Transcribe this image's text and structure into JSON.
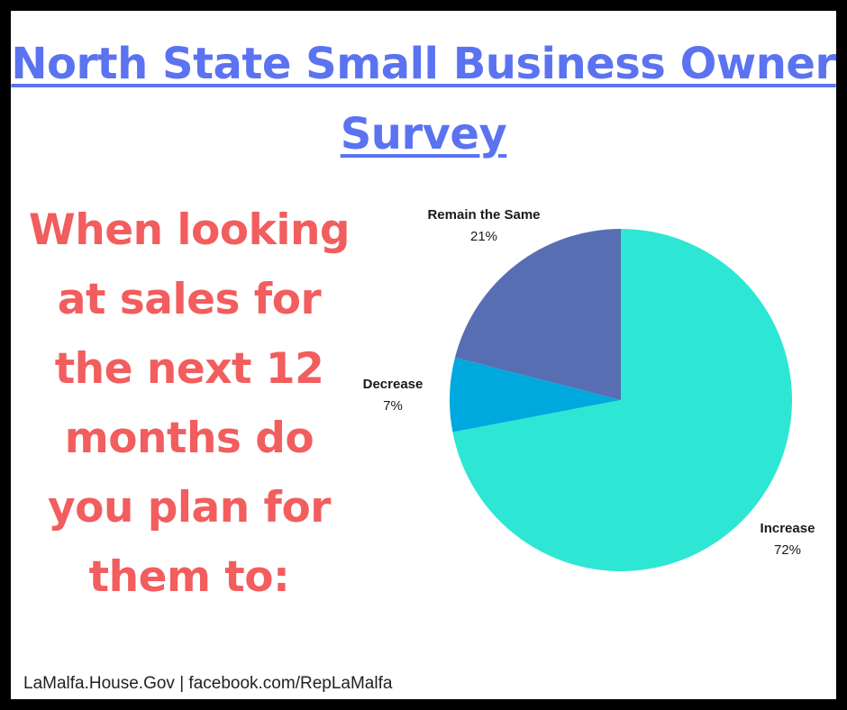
{
  "title": "North State Small Business Owner Survey",
  "question": "When looking at sales for the next 12 months do you plan for them to:",
  "footer": "LaMalfa.House.Gov | facebook.com/RepLaMalfa",
  "colors": {
    "title": "#5b73f0",
    "question": "#f25d5e",
    "increase": "#2ee6d4",
    "decrease": "#00a9dd",
    "remain": "#576eb2",
    "border": "#000000"
  },
  "chart_data": {
    "type": "pie",
    "title": "",
    "start_angle": "12 o'clock",
    "direction": "clockwise",
    "slices": [
      {
        "label": "Increase",
        "value": 72,
        "display": "72%",
        "color": "#2ee6d4"
      },
      {
        "label": "Decrease",
        "value": 7,
        "display": "7%",
        "color": "#00a9dd"
      },
      {
        "label": "Remain the Same",
        "value": 21,
        "display": "21%",
        "color": "#576eb2"
      }
    ]
  }
}
